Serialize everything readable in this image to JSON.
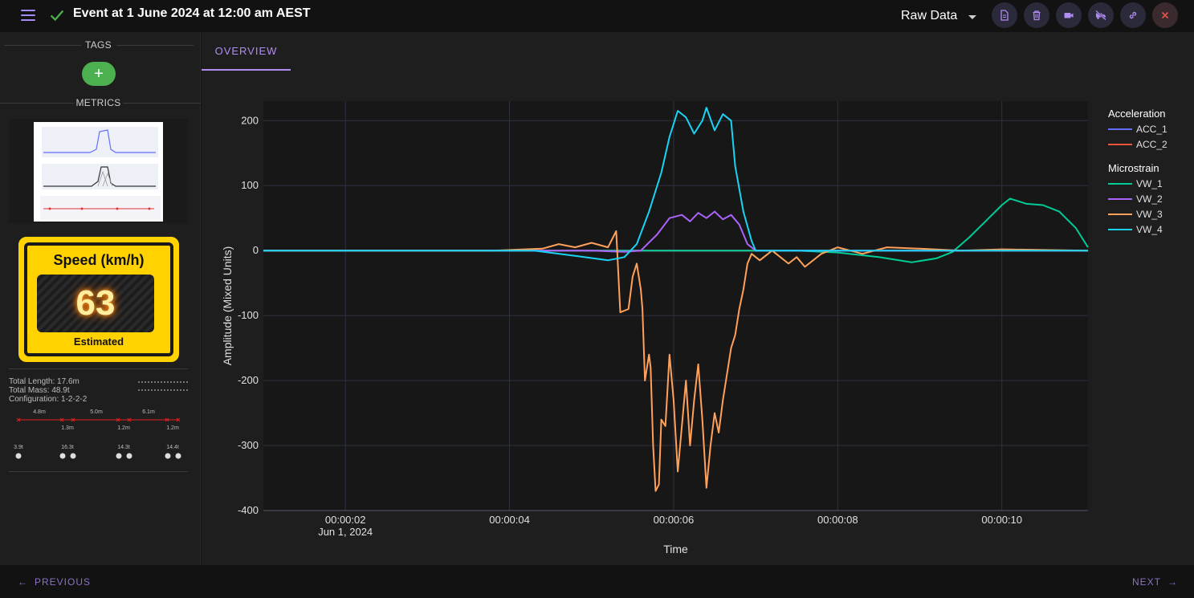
{
  "header": {
    "title": "Event at 1 June 2024 at 12:00 am AEST",
    "view_select": "Raw Data"
  },
  "sidebar": {
    "tags_label": "TAGS",
    "add_tag_label": "+",
    "metrics_label": "METRICS",
    "speed": {
      "title": "Speed (km/h)",
      "value": "63",
      "subtitle": "Estimated"
    },
    "axle": {
      "total_length": "Total Length: 17.6m",
      "total_mass": "Total Mass: 48.9t",
      "configuration": "Configuration: 1-2-2-2",
      "top_spacings": [
        "4.8m",
        "5.0m",
        "6.1m"
      ],
      "bottom_spacings": [
        "1.3m",
        "1.2m",
        "1.2m"
      ],
      "group_masses": [
        "3.9t",
        "16.3t",
        "14.3t",
        "14.4t"
      ]
    }
  },
  "tabs": [
    {
      "label": "OVERVIEW",
      "active": true
    }
  ],
  "colors": {
    "ACC_1": "#636efa",
    "ACC_2": "#ef553b",
    "VW_1": "#00cc96",
    "VW_2": "#ab63fa",
    "VW_3": "#ffa15a",
    "VW_4": "#19d3f3"
  },
  "chart_data": {
    "type": "line",
    "xlabel": "Time",
    "ylabel": "Amplitude (Mixed Units)",
    "x_unit": "seconds",
    "xlim": [
      1.0,
      11.05
    ],
    "ylim": [
      -400,
      230
    ],
    "x_ticks": [
      {
        "value": 2,
        "label": "00:00:02",
        "sublabel": "Jun 1, 2024"
      },
      {
        "value": 4,
        "label": "00:00:04"
      },
      {
        "value": 6,
        "label": "00:00:06"
      },
      {
        "value": 8,
        "label": "00:00:08"
      },
      {
        "value": 10,
        "label": "00:00:10"
      }
    ],
    "y_ticks": [
      200,
      100,
      0,
      -100,
      -200,
      -300,
      -400
    ],
    "legend_placement": "right",
    "legend_groups": [
      {
        "title": "Acceleration",
        "series": [
          "ACC_1",
          "ACC_2"
        ]
      },
      {
        "title": "Microstrain",
        "series": [
          "VW_1",
          "VW_2",
          "VW_3",
          "VW_4"
        ]
      }
    ],
    "series": [
      {
        "name": "ACC_1",
        "color": "#636efa",
        "points": [
          [
            1.0,
            0
          ],
          [
            11.05,
            0
          ]
        ]
      },
      {
        "name": "ACC_2",
        "color": "#ef553b",
        "points": [
          [
            1.0,
            0
          ],
          [
            11.05,
            0
          ]
        ]
      },
      {
        "name": "VW_1",
        "color": "#00cc96",
        "points": [
          [
            1.0,
            0
          ],
          [
            7.0,
            0
          ],
          [
            7.5,
            0
          ],
          [
            8.0,
            -3
          ],
          [
            8.5,
            -10
          ],
          [
            8.9,
            -18
          ],
          [
            9.2,
            -12
          ],
          [
            9.4,
            -2
          ],
          [
            9.6,
            20
          ],
          [
            9.8,
            45
          ],
          [
            10.0,
            70
          ],
          [
            10.1,
            80
          ],
          [
            10.3,
            72
          ],
          [
            10.5,
            70
          ],
          [
            10.7,
            60
          ],
          [
            10.9,
            35
          ],
          [
            11.05,
            5
          ]
        ]
      },
      {
        "name": "VW_2",
        "color": "#ab63fa",
        "points": [
          [
            1.0,
            0
          ],
          [
            5.0,
            0
          ],
          [
            5.4,
            -2
          ],
          [
            5.6,
            0
          ],
          [
            5.8,
            25
          ],
          [
            5.95,
            50
          ],
          [
            6.1,
            55
          ],
          [
            6.2,
            45
          ],
          [
            6.3,
            58
          ],
          [
            6.4,
            50
          ],
          [
            6.5,
            60
          ],
          [
            6.6,
            48
          ],
          [
            6.7,
            55
          ],
          [
            6.8,
            40
          ],
          [
            6.9,
            10
          ],
          [
            7.0,
            0
          ],
          [
            11.05,
            0
          ]
        ]
      },
      {
        "name": "VW_3",
        "color": "#ffa15a",
        "points": [
          [
            1.0,
            0
          ],
          [
            3.8,
            0
          ],
          [
            4.4,
            3
          ],
          [
            4.6,
            10
          ],
          [
            4.8,
            5
          ],
          [
            5.0,
            12
          ],
          [
            5.2,
            5
          ],
          [
            5.3,
            30
          ],
          [
            5.35,
            -95
          ],
          [
            5.45,
            -90
          ],
          [
            5.5,
            -40
          ],
          [
            5.55,
            -20
          ],
          [
            5.6,
            -60
          ],
          [
            5.62,
            -90
          ],
          [
            5.65,
            -200
          ],
          [
            5.7,
            -160
          ],
          [
            5.72,
            -180
          ],
          [
            5.75,
            -300
          ],
          [
            5.78,
            -370
          ],
          [
            5.82,
            -360
          ],
          [
            5.85,
            -260
          ],
          [
            5.9,
            -270
          ],
          [
            5.95,
            -160
          ],
          [
            6.0,
            -230
          ],
          [
            6.05,
            -340
          ],
          [
            6.1,
            -270
          ],
          [
            6.15,
            -200
          ],
          [
            6.2,
            -300
          ],
          [
            6.25,
            -230
          ],
          [
            6.3,
            -175
          ],
          [
            6.35,
            -260
          ],
          [
            6.4,
            -365
          ],
          [
            6.45,
            -300
          ],
          [
            6.5,
            -250
          ],
          [
            6.55,
            -280
          ],
          [
            6.6,
            -230
          ],
          [
            6.65,
            -190
          ],
          [
            6.7,
            -150
          ],
          [
            6.75,
            -130
          ],
          [
            6.8,
            -90
          ],
          [
            6.85,
            -60
          ],
          [
            6.9,
            -20
          ],
          [
            6.95,
            -5
          ],
          [
            7.05,
            -15
          ],
          [
            7.2,
            0
          ],
          [
            7.4,
            -20
          ],
          [
            7.5,
            -10
          ],
          [
            7.6,
            -25
          ],
          [
            7.8,
            -5
          ],
          [
            8.0,
            5
          ],
          [
            8.3,
            -5
          ],
          [
            8.6,
            5
          ],
          [
            9.0,
            3
          ],
          [
            9.5,
            0
          ],
          [
            10.0,
            2
          ],
          [
            11.05,
            0
          ]
        ]
      },
      {
        "name": "VW_4",
        "color": "#19d3f3",
        "points": [
          [
            1.0,
            0
          ],
          [
            4.3,
            0
          ],
          [
            4.8,
            -8
          ],
          [
            5.2,
            -15
          ],
          [
            5.4,
            -10
          ],
          [
            5.55,
            10
          ],
          [
            5.7,
            60
          ],
          [
            5.85,
            120
          ],
          [
            5.95,
            175
          ],
          [
            6.05,
            215
          ],
          [
            6.15,
            205
          ],
          [
            6.25,
            180
          ],
          [
            6.35,
            200
          ],
          [
            6.4,
            220
          ],
          [
            6.5,
            185
          ],
          [
            6.6,
            210
          ],
          [
            6.7,
            200
          ],
          [
            6.75,
            130
          ],
          [
            6.85,
            60
          ],
          [
            6.95,
            15
          ],
          [
            7.0,
            0
          ],
          [
            11.05,
            0
          ]
        ]
      }
    ]
  },
  "footer": {
    "previous_label": "PREVIOUS",
    "next_label": "NEXT"
  }
}
